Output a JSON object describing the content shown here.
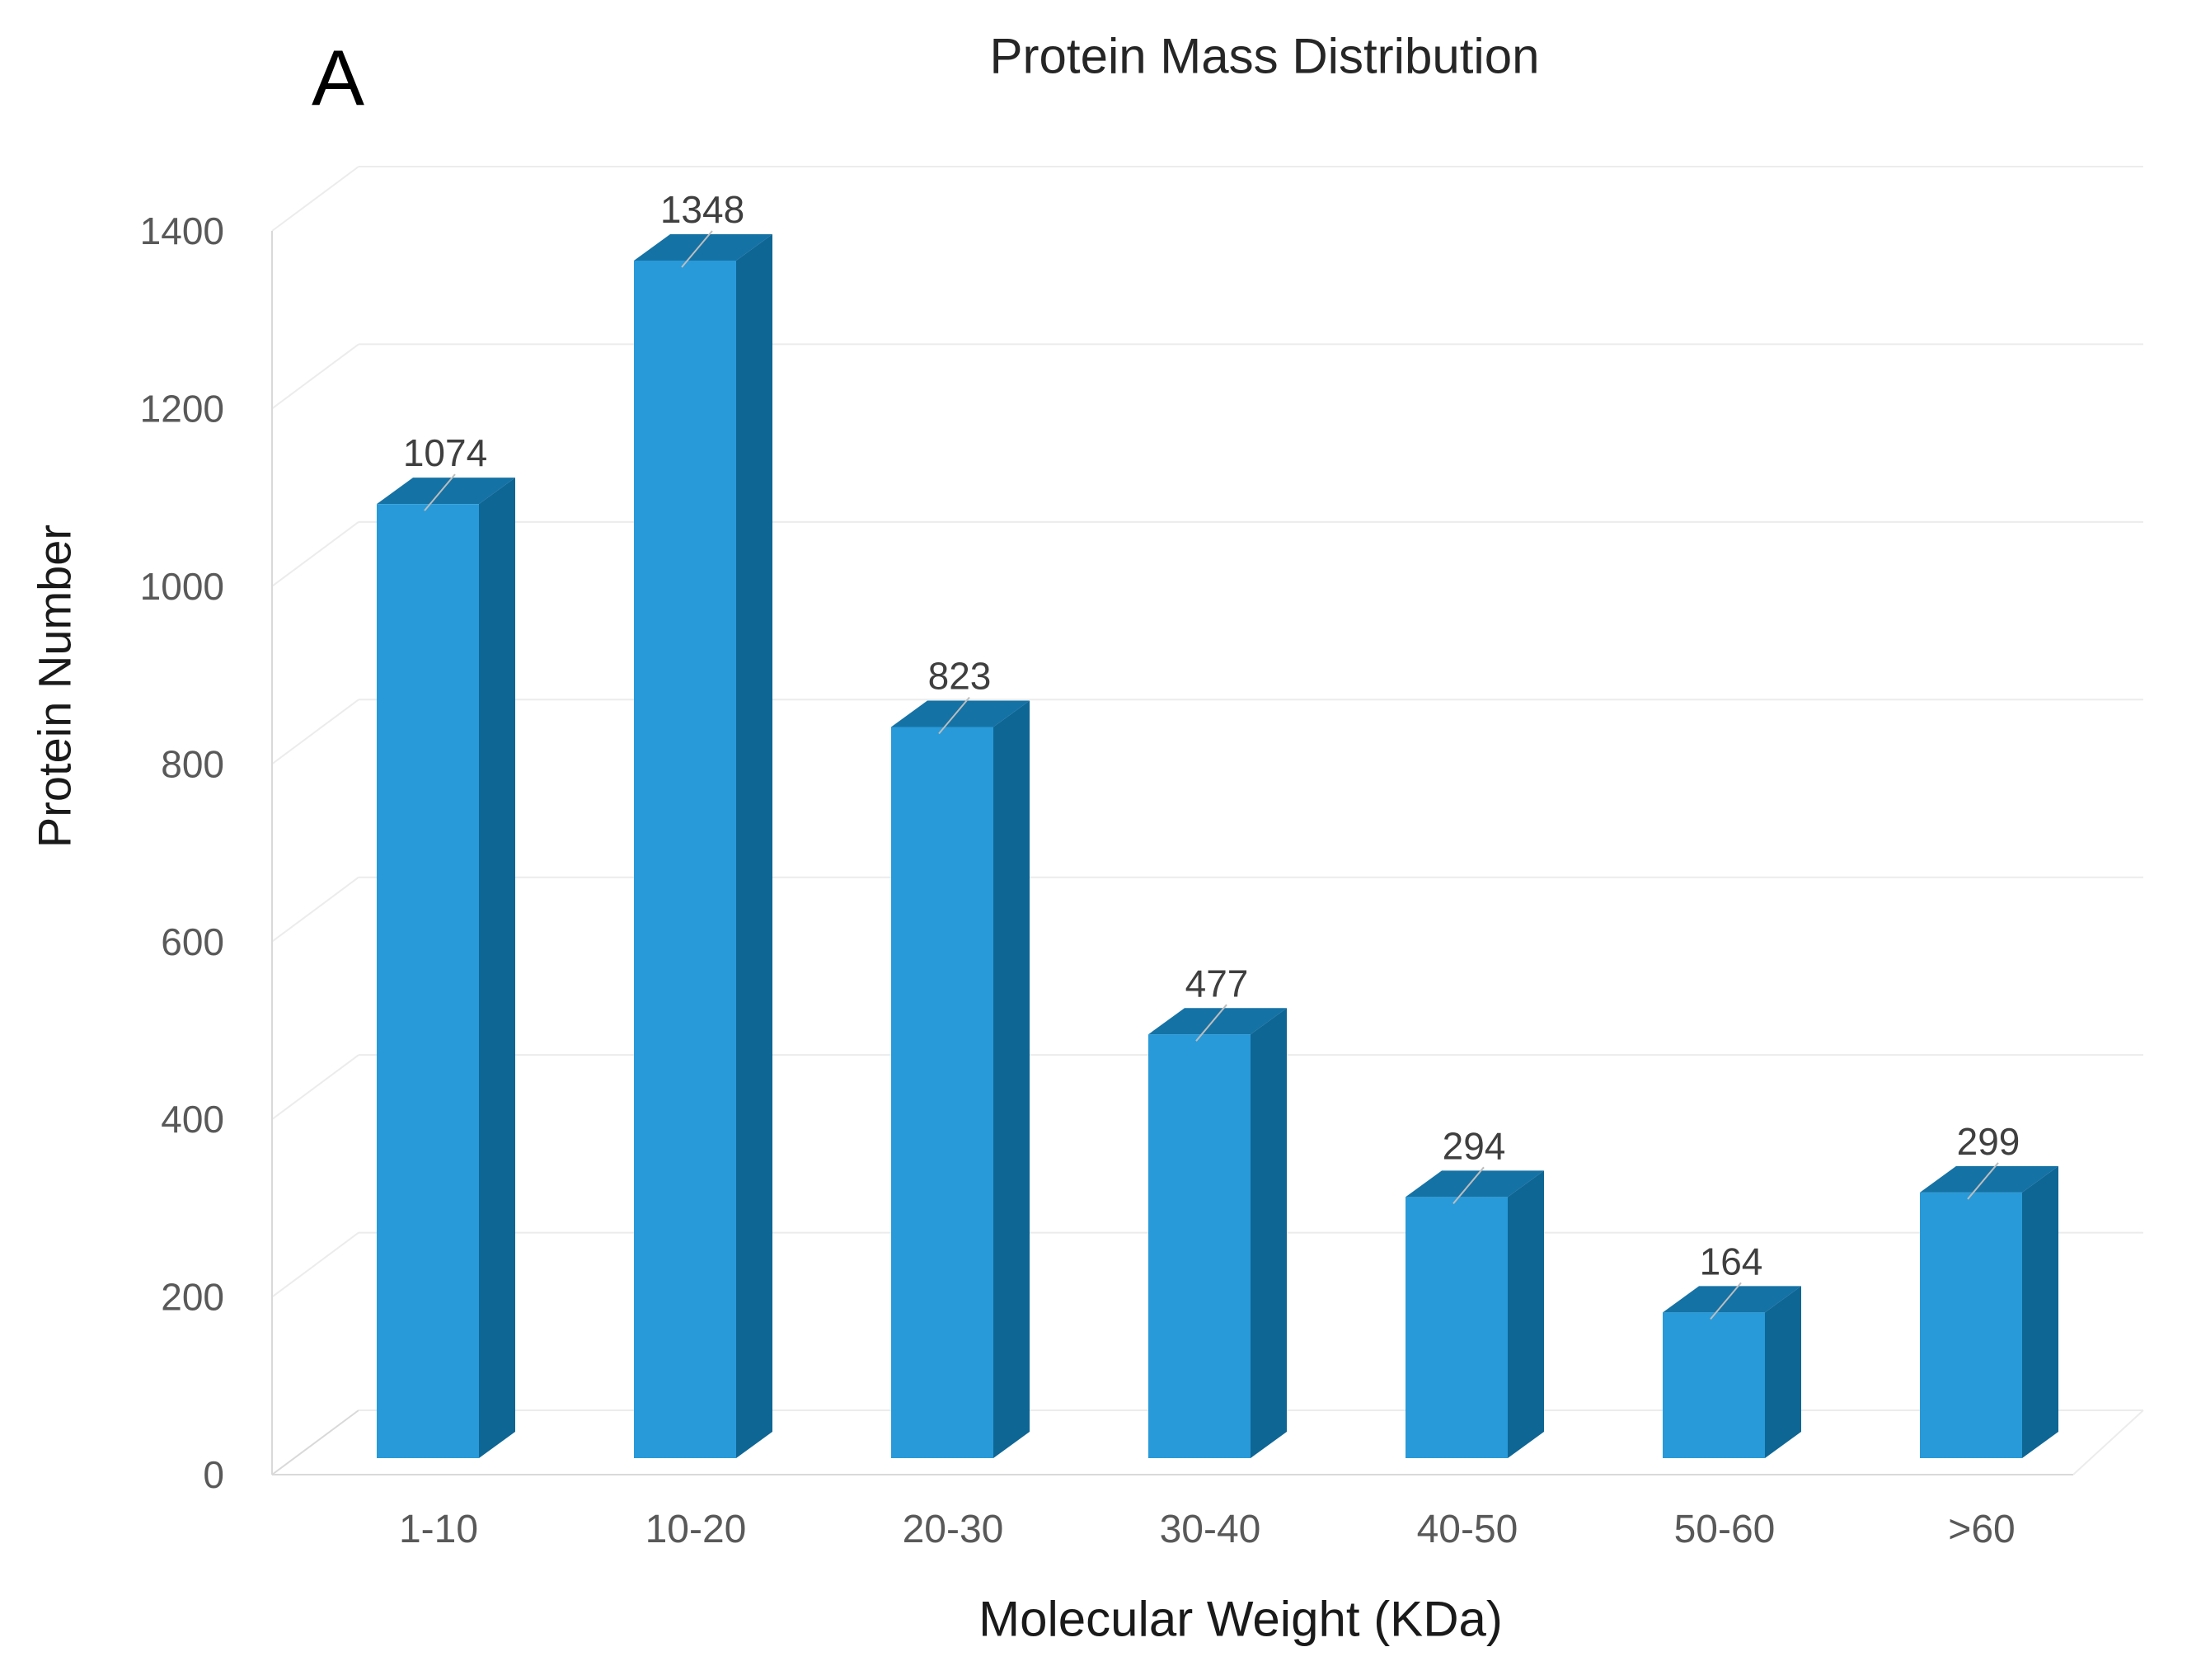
{
  "panel_label": "A",
  "chart_data": {
    "type": "bar",
    "style": "3d-column",
    "title": "Protein Mass Distribution",
    "xlabel": "Molecular Weight (KDa)",
    "ylabel": "Protein Number",
    "categories": [
      "1-10",
      "10-20",
      "20-30",
      "30-40",
      "40-50",
      "50-60",
      ">60"
    ],
    "values": [
      1074,
      1348,
      823,
      477,
      294,
      164,
      299
    ],
    "ylim": [
      0,
      1400
    ],
    "yticks": [
      0,
      200,
      400,
      600,
      800,
      1000,
      1200,
      1400
    ],
    "grid": true,
    "legend_position": "none",
    "colors": {
      "bar_front": "#289AD9",
      "bar_top": "#1572A5",
      "bar_side": "#0E6695",
      "gridline": "#ECECEC",
      "axis_line": "#D9D9D9",
      "leader_line": "#BDBDBD",
      "value_label": "#3F3F3F",
      "tick_label": "#595959",
      "category_label": "#595959",
      "title": "#262626",
      "axis_title": "#1A1A1A",
      "panel_label_color": "#000000"
    }
  }
}
